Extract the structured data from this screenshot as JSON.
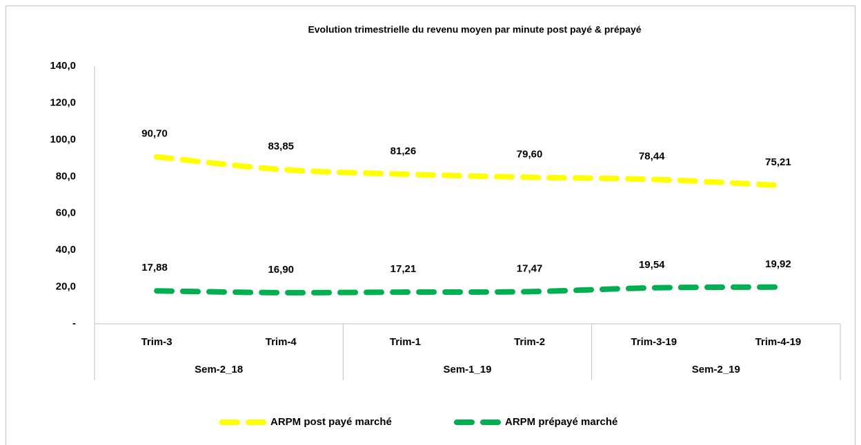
{
  "chart_data": {
    "type": "line",
    "title": "Evolution trimestrielle  du revenu moyen par minute  post payé  & prépayé",
    "categories": [
      "Trim-3",
      "Trim-4",
      "Trim-1",
      "Trim-2",
      "Trim-3-19",
      "Trim-4-19"
    ],
    "groups": [
      "Sem-2_18",
      "Sem-1_19",
      "Sem-2_19"
    ],
    "series": [
      {
        "name": "ARPM post payé marché",
        "color": "#ffff00",
        "values": [
          90.7,
          83.85,
          81.26,
          79.6,
          78.44,
          75.21
        ],
        "value_labels": [
          "90,70",
          "83,85",
          "81,26",
          "79,60",
          "78,44",
          "75,21"
        ]
      },
      {
        "name": "ARPM prépayé marché",
        "color": "#00b050",
        "values": [
          17.88,
          16.9,
          17.21,
          17.47,
          19.54,
          19.92
        ],
        "value_labels": [
          "17,88",
          "16,90",
          "17,21",
          "17,47",
          "19,54",
          "19,92"
        ]
      }
    ],
    "ylim": [
      0,
      140
    ],
    "yticks": [
      {
        "value": 0,
        "label": "-"
      },
      {
        "value": 20,
        "label": "20,0"
      },
      {
        "value": 40,
        "label": "40,0"
      },
      {
        "value": 60,
        "label": "60,0"
      },
      {
        "value": 80,
        "label": "80,0"
      },
      {
        "value": 100,
        "label": "100,0"
      },
      {
        "value": 120,
        "label": "120,0"
      },
      {
        "value": 140,
        "label": "140,0"
      }
    ],
    "legend": "bottom"
  }
}
